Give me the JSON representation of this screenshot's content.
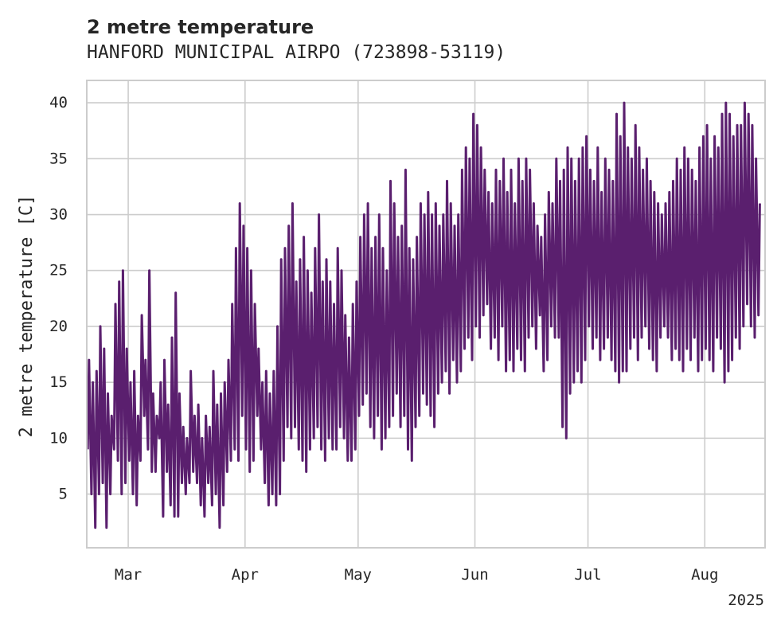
{
  "chart_data": {
    "type": "line",
    "title": "2 metre temperature",
    "subtitle": "HANFORD MUNICIPAL AIRPO (723898-53119)",
    "xlabel": "",
    "ylabel": "2 metre temperature [C]",
    "year_label": "2025",
    "x_tick_labels": [
      "Mar",
      "Apr",
      "May",
      "Jun",
      "Jul",
      "Aug"
    ],
    "x_tick_dates": [
      "2025-03-01",
      "2025-04-01",
      "2025-05-01",
      "2025-06-01",
      "2025-07-01",
      "2025-08-01"
    ],
    "xlim": [
      "2025-02-18",
      "2025-08-17"
    ],
    "y_ticks": [
      5,
      10,
      15,
      20,
      25,
      30,
      35,
      40
    ],
    "y_tick_labels": [
      "5",
      "10",
      "15",
      "20",
      "25",
      "30",
      "35",
      "40"
    ],
    "ylim": [
      0.2,
      42
    ],
    "grid": true,
    "series": [
      {
        "color": "#5a1f6e",
        "resolution": "daily min/max (diurnal cycle)",
        "dates": [
          "2025-02-18",
          "2025-02-19",
          "2025-02-20",
          "2025-02-21",
          "2025-02-22",
          "2025-02-23",
          "2025-02-24",
          "2025-02-25",
          "2025-02-26",
          "2025-02-27",
          "2025-02-28",
          "2025-03-01",
          "2025-03-02",
          "2025-03-03",
          "2025-03-04",
          "2025-03-05",
          "2025-03-06",
          "2025-03-07",
          "2025-03-08",
          "2025-03-09",
          "2025-03-10",
          "2025-03-11",
          "2025-03-12",
          "2025-03-13",
          "2025-03-14",
          "2025-03-15",
          "2025-03-16",
          "2025-03-17",
          "2025-03-18",
          "2025-03-19",
          "2025-03-20",
          "2025-03-21",
          "2025-03-22",
          "2025-03-23",
          "2025-03-24",
          "2025-03-25",
          "2025-03-26",
          "2025-03-27",
          "2025-03-28",
          "2025-03-29",
          "2025-03-30",
          "2025-03-31",
          "2025-04-01",
          "2025-04-02",
          "2025-04-03",
          "2025-04-04",
          "2025-04-05",
          "2025-04-06",
          "2025-04-07",
          "2025-04-08",
          "2025-04-09",
          "2025-04-10",
          "2025-04-11",
          "2025-04-12",
          "2025-04-13",
          "2025-04-14",
          "2025-04-15",
          "2025-04-16",
          "2025-04-17",
          "2025-04-18",
          "2025-04-19",
          "2025-04-20",
          "2025-04-21",
          "2025-04-22",
          "2025-04-23",
          "2025-04-24",
          "2025-04-25",
          "2025-04-26",
          "2025-04-27",
          "2025-04-28",
          "2025-04-29",
          "2025-04-30",
          "2025-05-01",
          "2025-05-02",
          "2025-05-03",
          "2025-05-04",
          "2025-05-05",
          "2025-05-06",
          "2025-05-07",
          "2025-05-08",
          "2025-05-09",
          "2025-05-10",
          "2025-05-11",
          "2025-05-12",
          "2025-05-13",
          "2025-05-14",
          "2025-05-15",
          "2025-05-16",
          "2025-05-17",
          "2025-05-18",
          "2025-05-19",
          "2025-05-20",
          "2025-05-21",
          "2025-05-22",
          "2025-05-23",
          "2025-05-24",
          "2025-05-25",
          "2025-05-26",
          "2025-05-27",
          "2025-05-28",
          "2025-05-29",
          "2025-05-30",
          "2025-05-31",
          "2025-06-01",
          "2025-06-02",
          "2025-06-03",
          "2025-06-04",
          "2025-06-05",
          "2025-06-06",
          "2025-06-07",
          "2025-06-08",
          "2025-06-09",
          "2025-06-10",
          "2025-06-11",
          "2025-06-12",
          "2025-06-13",
          "2025-06-14",
          "2025-06-15",
          "2025-06-16",
          "2025-06-17",
          "2025-06-18",
          "2025-06-19",
          "2025-06-20",
          "2025-06-21",
          "2025-06-22",
          "2025-06-23",
          "2025-06-24",
          "2025-06-25",
          "2025-06-26",
          "2025-06-27",
          "2025-06-28",
          "2025-06-29",
          "2025-06-30",
          "2025-07-01",
          "2025-07-02",
          "2025-07-03",
          "2025-07-04",
          "2025-07-05",
          "2025-07-06",
          "2025-07-07",
          "2025-07-08",
          "2025-07-09",
          "2025-07-10",
          "2025-07-11",
          "2025-07-12",
          "2025-07-13",
          "2025-07-14",
          "2025-07-15",
          "2025-07-16",
          "2025-07-17",
          "2025-07-18",
          "2025-07-19",
          "2025-07-20",
          "2025-07-21",
          "2025-07-22",
          "2025-07-23",
          "2025-07-24",
          "2025-07-25",
          "2025-07-26",
          "2025-07-27",
          "2025-07-28",
          "2025-07-29",
          "2025-07-30",
          "2025-07-31",
          "2025-08-01",
          "2025-08-02",
          "2025-08-03",
          "2025-08-04",
          "2025-08-05",
          "2025-08-06",
          "2025-08-07",
          "2025-08-08",
          "2025-08-09",
          "2025-08-10",
          "2025-08-11",
          "2025-08-12",
          "2025-08-13",
          "2025-08-14",
          "2025-08-15"
        ],
        "daily_min": [
          9,
          5,
          2,
          5,
          6,
          2,
          5,
          9,
          8,
          5,
          6,
          8,
          5,
          4,
          8,
          12,
          9,
          7,
          7,
          10,
          3,
          7,
          4,
          3,
          3,
          6,
          5,
          6,
          7,
          6,
          4,
          3,
          6,
          4,
          5,
          2,
          4,
          7,
          8,
          9,
          8,
          12,
          9,
          7,
          8,
          12,
          9,
          6,
          4,
          5,
          4,
          5,
          8,
          11,
          10,
          11,
          9,
          8,
          7,
          9,
          10,
          11,
          9,
          8,
          10,
          9,
          9,
          11,
          10,
          8,
          8,
          9,
          12,
          13,
          14,
          11,
          10,
          12,
          9,
          10,
          11,
          12,
          14,
          11,
          12,
          9,
          8,
          11,
          12,
          14,
          13,
          12,
          11,
          14,
          15,
          16,
          14,
          17,
          15,
          16,
          18,
          19,
          17,
          20,
          19,
          21,
          22,
          18,
          19,
          17,
          20,
          16,
          17,
          16,
          18,
          17,
          16,
          19,
          20,
          18,
          21,
          16,
          17,
          20,
          19,
          19,
          11,
          10,
          14,
          15,
          16,
          15,
          17,
          20,
          18,
          19,
          17,
          18,
          19,
          17,
          16,
          15,
          16,
          16,
          18,
          19,
          17,
          19,
          20,
          18,
          17,
          16,
          19,
          20,
          19,
          17,
          18,
          17,
          16,
          18,
          17,
          19,
          16,
          17,
          18,
          17,
          16,
          19,
          18,
          15,
          16,
          17,
          19,
          18,
          20,
          22,
          20,
          19,
          21
        ],
        "daily_max": [
          17,
          15,
          16,
          20,
          18,
          14,
          12,
          22,
          24,
          25,
          18,
          15,
          16,
          12,
          21,
          17,
          25,
          14,
          12,
          15,
          17,
          13,
          19,
          23,
          14,
          11,
          10,
          16,
          12,
          13,
          10,
          12,
          11,
          16,
          13,
          14,
          15,
          17,
          22,
          27,
          31,
          29,
          27,
          25,
          22,
          18,
          15,
          16,
          14,
          16,
          20,
          26,
          27,
          29,
          31,
          24,
          26,
          28,
          25,
          23,
          27,
          30,
          24,
          26,
          24,
          22,
          27,
          25,
          21,
          19,
          22,
          24,
          28,
          30,
          31,
          27,
          28,
          30,
          27,
          25,
          33,
          31,
          28,
          29,
          34,
          27,
          26,
          28,
          31,
          30,
          32,
          30,
          31,
          29,
          30,
          33,
          31,
          29,
          30,
          34,
          36,
          35,
          39,
          38,
          36,
          34,
          32,
          31,
          34,
          33,
          35,
          32,
          34,
          31,
          35,
          33,
          35,
          34,
          31,
          29,
          28,
          30,
          32,
          31,
          35,
          33,
          34,
          36,
          35,
          33,
          35,
          36,
          37,
          34,
          33,
          36,
          32,
          35,
          34,
          33,
          39,
          37,
          40,
          36,
          35,
          38,
          36,
          34,
          35,
          33,
          32,
          31,
          30,
          31,
          32,
          33,
          35,
          34,
          36,
          35,
          34,
          33,
          36,
          37,
          38,
          35,
          37,
          36,
          39,
          40,
          39,
          37,
          38,
          38,
          40,
          39,
          38,
          35,
          31
        ]
      }
    ]
  }
}
